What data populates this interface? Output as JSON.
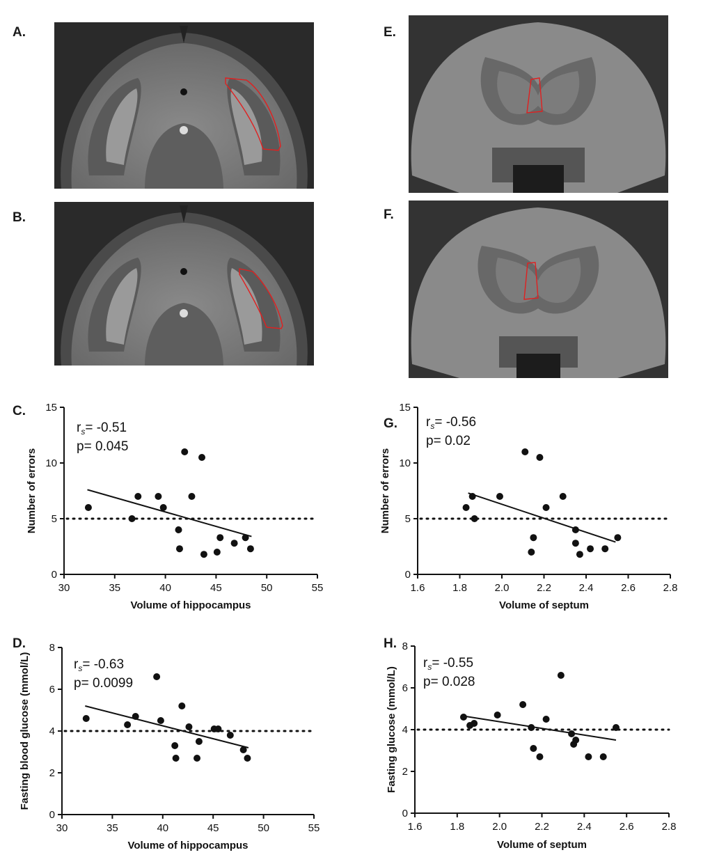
{
  "panel_labels": {
    "A": "A.",
    "B": "B.",
    "C": "C.",
    "D": "D.",
    "E": "E.",
    "F": "F.",
    "G": "G.",
    "H": "H."
  },
  "images": {
    "A": {
      "subject": "coronal MRI brain slice, hippocampus region outlined in red"
    },
    "B": {
      "subject": "coronal MRI brain slice, hippocampus region outlined in red"
    },
    "E": {
      "subject": "coronal MRI brain slice, septum region outlined in red"
    },
    "F": {
      "subject": "coronal MRI brain slice, septum region outlined in red"
    },
    "roi_color": "#e02020"
  },
  "chart_data": [
    {
      "id": "C",
      "type": "scatter",
      "title": "",
      "xlabel": "Volume of hippocampus",
      "ylabel": "Number of errors",
      "xlim": [
        30,
        55
      ],
      "ylim": [
        0,
        15
      ],
      "xticks": [
        30,
        35,
        40,
        45,
        50,
        55
      ],
      "xtick_labels": [
        "30",
        "35",
        "40",
        "45",
        "50",
        "55"
      ],
      "yticks": [
        0,
        5,
        10,
        15
      ],
      "ytick_labels": [
        "0",
        "5",
        "10",
        "15"
      ],
      "stat_r_prefix": "r",
      "stat_r_sub": "s",
      "stat_r_value": "= -0.51",
      "stat_p": "p= 0.045",
      "reference_line": 5,
      "fit_line": {
        "x": [
          32.3,
          48.5
        ],
        "y": [
          7.6,
          3.4
        ]
      },
      "points": [
        [
          32.4,
          6
        ],
        [
          36.7,
          5
        ],
        [
          37.3,
          7
        ],
        [
          39.3,
          7
        ],
        [
          39.8,
          6
        ],
        [
          41.3,
          4
        ],
        [
          41.4,
          2.3
        ],
        [
          41.9,
          11
        ],
        [
          42.6,
          7
        ],
        [
          43.6,
          10.5
        ],
        [
          43.8,
          1.8
        ],
        [
          45.1,
          2
        ],
        [
          45.4,
          3.3
        ],
        [
          46.8,
          2.8
        ],
        [
          47.9,
          3.3
        ],
        [
          48.4,
          2.3
        ]
      ]
    },
    {
      "id": "D",
      "type": "scatter",
      "title": "",
      "xlabel": "Volume of hippocampus",
      "ylabel": "Fasting blood glucose (mmol/L)",
      "xlim": [
        30,
        55
      ],
      "ylim": [
        0,
        8
      ],
      "xticks": [
        30,
        35,
        40,
        45,
        50,
        55
      ],
      "xtick_labels": [
        "30",
        "35",
        "40",
        "45",
        "50",
        "55"
      ],
      "yticks": [
        0,
        2,
        4,
        6,
        8
      ],
      "ytick_labels": [
        "0",
        "2",
        "4",
        "6",
        "8"
      ],
      "stat_r_prefix": "r",
      "stat_r_sub": "s",
      "stat_r_value": "= -0.63",
      "stat_p": "p= 0.0099",
      "reference_line": 4,
      "fit_line": {
        "x": [
          32.3,
          48.5
        ],
        "y": [
          5.2,
          3.2
        ]
      },
      "points": [
        [
          32.4,
          4.6
        ],
        [
          36.5,
          4.3
        ],
        [
          37.3,
          4.7
        ],
        [
          39.4,
          6.6
        ],
        [
          39.8,
          4.5
        ],
        [
          41.2,
          3.3
        ],
        [
          41.3,
          2.7
        ],
        [
          41.9,
          5.2
        ],
        [
          42.6,
          4.2
        ],
        [
          43.4,
          2.7
        ],
        [
          43.6,
          3.5
        ],
        [
          45.1,
          4.1
        ],
        [
          45.5,
          4.1
        ],
        [
          46.7,
          3.8
        ],
        [
          48.0,
          3.1
        ],
        [
          48.4,
          2.7
        ]
      ]
    },
    {
      "id": "G",
      "type": "scatter",
      "title": "",
      "xlabel": "Volume of septum",
      "ylabel": "Number of errors",
      "xlim": [
        1.6,
        2.8
      ],
      "ylim": [
        0,
        15
      ],
      "xticks": [
        1.6,
        1.8,
        2.0,
        2.2,
        2.4,
        2.6,
        2.8
      ],
      "xtick_labels": [
        "1.6",
        "1.8",
        "2.0",
        "2.2",
        "2.4",
        "2.6",
        "2.8"
      ],
      "yticks": [
        0,
        5,
        10,
        15
      ],
      "ytick_labels": [
        "0",
        "5",
        "10",
        "15"
      ],
      "stat_r_prefix": "r",
      "stat_r_sub": "s",
      "stat_r_value": "= -0.56",
      "stat_p": "p= 0.02",
      "reference_line": 5,
      "fit_line": {
        "x": [
          1.84,
          2.54
        ],
        "y": [
          7.3,
          2.9
        ]
      },
      "points": [
        [
          1.83,
          6
        ],
        [
          1.86,
          7
        ],
        [
          1.87,
          5
        ],
        [
          1.99,
          7
        ],
        [
          2.11,
          11
        ],
        [
          2.14,
          2
        ],
        [
          2.15,
          3.3
        ],
        [
          2.18,
          10.5
        ],
        [
          2.21,
          6
        ],
        [
          2.29,
          7
        ],
        [
          2.35,
          4
        ],
        [
          2.35,
          2.8
        ],
        [
          2.37,
          1.8
        ],
        [
          2.42,
          2.3
        ],
        [
          2.49,
          2.3
        ],
        [
          2.55,
          3.3
        ]
      ]
    },
    {
      "id": "H",
      "type": "scatter",
      "title": "",
      "xlabel": "Volume of septum",
      "ylabel": "Fasting glucose (mmol/L)",
      "xlim": [
        1.6,
        2.8
      ],
      "ylim": [
        0,
        8
      ],
      "xticks": [
        1.6,
        1.8,
        2.0,
        2.2,
        2.4,
        2.6,
        2.8
      ],
      "xtick_labels": [
        "1.6",
        "1.8",
        "2.0",
        "2.2",
        "2.4",
        "2.6",
        "2.8"
      ],
      "yticks": [
        0,
        2,
        4,
        6,
        8
      ],
      "ytick_labels": [
        "0",
        "2",
        "4",
        "6",
        "8"
      ],
      "stat_r_prefix": "r",
      "stat_r_sub": "s",
      "stat_r_value": "= -0.55",
      "stat_p": "p= 0.028",
      "reference_line": 4,
      "fit_line": {
        "x": [
          1.83,
          2.55
        ],
        "y": [
          4.65,
          3.5
        ]
      },
      "points": [
        [
          1.83,
          4.6
        ],
        [
          1.86,
          4.2
        ],
        [
          1.88,
          4.3
        ],
        [
          1.99,
          4.7
        ],
        [
          2.11,
          5.2
        ],
        [
          2.15,
          4.1
        ],
        [
          2.16,
          3.1
        ],
        [
          2.19,
          2.7
        ],
        [
          2.22,
          4.5
        ],
        [
          2.29,
          6.6
        ],
        [
          2.34,
          3.8
        ],
        [
          2.35,
          3.3
        ],
        [
          2.36,
          3.5
        ],
        [
          2.42,
          2.7
        ],
        [
          2.49,
          2.7
        ],
        [
          2.55,
          4.1
        ]
      ]
    }
  ]
}
